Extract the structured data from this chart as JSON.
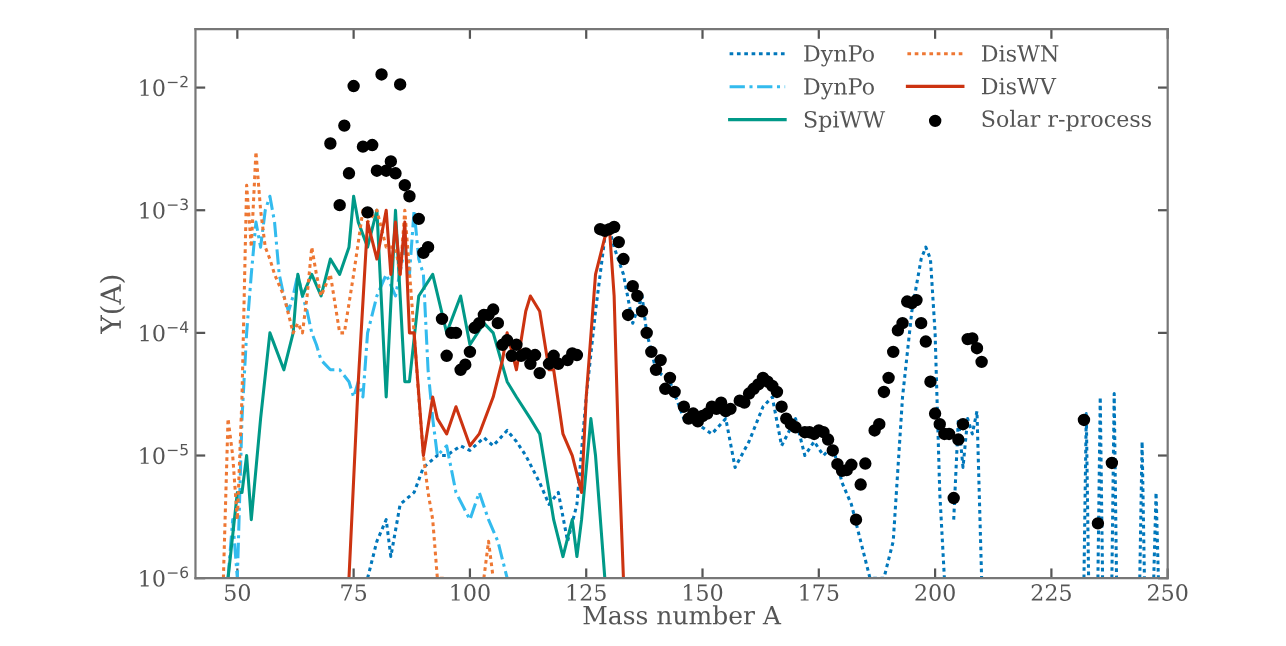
{
  "chart_data": {
    "type": "line",
    "xlabel": "Mass number A",
    "ylabel": "Y(A)",
    "log": "y",
    "xlim": [
      41,
      250
    ],
    "xticks": [
      50,
      75,
      100,
      125,
      150,
      175,
      200,
      225,
      250
    ],
    "ylim": [
      1e-06,
      0.03
    ],
    "yticks": [
      {
        "value": 1e-06,
        "label": "10$^{−6}$"
      },
      {
        "value": 1e-05,
        "label": "10$^{−5}$"
      },
      {
        "value": 0.0001,
        "label": "10$^{−4}$"
      },
      {
        "value": 0.001,
        "label": "10$^{−3}$"
      },
      {
        "value": 0.01,
        "label": "10$^{−2}$"
      }
    ],
    "grid": false,
    "legend": "top right",
    "series": [
      {
        "name": "DynPo",
        "line_style": "dotted",
        "color": "#0077bb",
        "x": [
          78,
          80,
          82,
          83,
          85,
          88,
          90,
          93,
          95,
          98,
          100,
          103,
          105,
          108,
          110,
          112,
          115,
          117,
          119,
          121,
          123,
          125,
          127,
          129,
          130,
          131,
          133,
          135,
          137,
          138,
          140,
          143,
          146,
          149,
          152,
          155,
          157,
          160,
          163,
          165,
          167,
          170,
          172,
          174,
          176,
          178,
          180,
          182,
          184,
          186,
          189,
          191,
          193,
          195,
          197,
          198,
          199,
          200,
          201,
          202,
          203,
          204,
          205,
          206,
          207,
          208,
          209,
          210,
          220,
          232,
          232.5,
          233,
          234,
          235,
          235.5,
          236,
          237,
          238,
          238.5,
          239,
          240,
          244,
          244.5,
          245,
          246,
          247,
          247.5,
          248
        ],
        "values": [
          1e-06,
          2e-06,
          3e-06,
          1.5e-06,
          4e-06,
          5e-06,
          8e-06,
          1e-05,
          1e-05,
          1.2e-05,
          1.1e-05,
          1.4e-05,
          1.2e-05,
          1.6e-05,
          1.3e-05,
          1e-05,
          6e-06,
          4e-06,
          5e-06,
          2e-06,
          4e-06,
          3e-05,
          0.00015,
          0.0006,
          0.0007,
          0.0005,
          0.0003,
          0.00012,
          0.0002,
          0.0001,
          5e-05,
          4e-05,
          2e-05,
          1.8e-05,
          1.5e-05,
          2e-05,
          8e-06,
          1.3e-05,
          2.5e-05,
          3e-05,
          1.2e-05,
          2e-05,
          1e-05,
          1.3e-05,
          1e-05,
          1.2e-05,
          6e-06,
          4e-06,
          2e-06,
          1e-06,
          1e-06,
          2e-06,
          3e-05,
          0.00015,
          0.0004,
          0.0005,
          0.0004,
          0.0001,
          5e-06,
          1e-06,
          null,
          3e-06,
          2e-05,
          8e-06,
          2e-05,
          1.5e-05,
          2.3e-05,
          1e-06,
          null,
          1e-06,
          2.2e-05,
          1e-06,
          null,
          1e-06,
          3e-05,
          1e-06,
          null,
          1e-06,
          3.2e-05,
          1e-06,
          null,
          1e-06,
          1.3e-05,
          1e-06,
          null,
          1e-06,
          5e-06,
          1e-06
        ]
      },
      {
        "name": "DynPo",
        "line_style": "dashed",
        "color": "#33bbee",
        "x": [
          48,
          49,
          50,
          51,
          52,
          53,
          54,
          55,
          56,
          57,
          58,
          59,
          60,
          61,
          62,
          63,
          64,
          65,
          66,
          67,
          68,
          70,
          72,
          74,
          75,
          76,
          77,
          78,
          80,
          82,
          84,
          86,
          87,
          88,
          89,
          90,
          91,
          92,
          93,
          95,
          97,
          100,
          102,
          104,
          106,
          108
        ],
        "values": [
          1e-06,
          3e-06,
          1e-06,
          2e-05,
          0.0001,
          0.0003,
          0.0008,
          0.0005,
          0.001,
          0.0013,
          0.0008,
          0.0003,
          0.0002,
          0.00015,
          0.0002,
          0.0003,
          0.0002,
          0.00015,
          0.0001,
          8e-05,
          6e-05,
          5e-05,
          5e-05,
          4e-05,
          3e-05,
          4e-05,
          3e-05,
          0.0001,
          0.0002,
          0.0003,
          0.0002,
          0.0005,
          0.0003,
          0.001,
          0.0004,
          0.0003,
          5e-05,
          2e-05,
          1e-05,
          1.2e-05,
          5e-06,
          3e-06,
          5e-06,
          3e-06,
          2e-06,
          1e-06
        ]
      },
      {
        "name": "SpiWW",
        "line_style": "solid",
        "color": "#009988",
        "x": [
          48,
          50,
          51,
          52,
          53,
          55,
          57,
          60,
          62,
          63,
          64,
          66,
          68,
          70,
          72,
          74,
          75,
          76,
          78,
          80,
          82,
          84,
          86,
          87,
          89,
          92,
          95,
          98,
          100,
          103,
          105,
          108,
          110,
          113,
          115,
          118,
          120,
          122,
          123,
          124,
          126,
          127,
          129
        ],
        "values": [
          1e-06,
          5e-06,
          5e-06,
          1e-05,
          3e-06,
          2e-05,
          0.0001,
          5e-05,
          0.0001,
          0.0003,
          0.0002,
          0.0003,
          0.0002,
          0.0004,
          0.0003,
          0.0005,
          0.0013,
          0.0008,
          0.0005,
          0.001,
          3e-05,
          0.001,
          4e-05,
          4e-05,
          0.0002,
          0.0003,
          0.0001,
          0.0002,
          8e-05,
          0.00012,
          0.0001,
          4e-05,
          3e-05,
          2e-05,
          1.5e-05,
          3e-06,
          1.5e-06,
          3e-06,
          1.5e-06,
          3e-06,
          2e-05,
          1e-05,
          1e-06
        ]
      },
      {
        "name": "DisWN",
        "line_style": "dotted",
        "color": "#ee7733",
        "x": [
          47,
          48,
          49,
          50,
          51,
          52,
          53,
          54,
          55,
          56,
          57,
          58,
          60,
          62,
          63,
          64,
          65,
          66,
          67,
          68,
          70,
          72,
          73,
          75,
          77,
          78,
          80,
          82,
          84,
          85,
          86,
          88,
          89,
          90,
          91,
          92,
          93,
          95,
          100,
          103,
          104,
          105
        ],
        "values": [
          1e-06,
          2e-05,
          1e-05,
          3e-06,
          3e-05,
          0.0016,
          0.0005,
          0.003,
          0.001,
          0.0005,
          0.0004,
          0.0003,
          0.0002,
          0.0001,
          0.00012,
          0.0001,
          0.0002,
          0.0005,
          0.0003,
          0.0002,
          0.0003,
          0.0001,
          0.0001,
          0.0003,
          0.001,
          0.0008,
          0.001,
          0.0005,
          0.0005,
          0.0003,
          0.001,
          0.0001,
          3e-05,
          1e-05,
          5e-06,
          3e-06,
          1e-06,
          1e-06,
          null,
          1e-06,
          2e-06,
          1e-06
        ]
      },
      {
        "name": "DisWV",
        "line_style": "solid",
        "color": "#cc3311",
        "x": [
          74,
          76,
          78,
          80,
          82,
          83,
          84,
          85,
          86,
          87,
          88,
          90,
          92,
          93,
          95,
          97,
          100,
          102,
          105,
          107,
          108,
          110,
          112,
          113,
          115,
          117,
          118,
          120,
          122,
          124,
          125,
          127,
          129,
          130,
          131,
          132,
          133
        ],
        "values": [
          1e-06,
          4e-05,
          0.0008,
          0.0004,
          0.001,
          0.0003,
          0.0008,
          0.0003,
          0.0008,
          0.0001,
          0.0001,
          1e-05,
          3e-05,
          2e-05,
          1.5e-05,
          2.5e-05,
          1.2e-05,
          1.5e-05,
          3e-05,
          6e-05,
          0.0001,
          5e-05,
          0.00015,
          0.0002,
          0.00015,
          5e-05,
          5e-05,
          1.5e-05,
          1e-05,
          5e-06,
          3e-05,
          0.0003,
          0.0006,
          0.0007,
          0.0002,
          1e-05,
          1e-06
        ]
      },
      {
        "name": "Solar r-process",
        "type": "scatter",
        "marker": "circle",
        "color": "#000000",
        "x": [
          70,
          72,
          73,
          74,
          75,
          77,
          78,
          79,
          80,
          81,
          82,
          83,
          84,
          85,
          86,
          87,
          89,
          90,
          91,
          94,
          95,
          96,
          97,
          98,
          99,
          100,
          101,
          102,
          103,
          104,
          105,
          106,
          107,
          108,
          109,
          110,
          111,
          112,
          113,
          114,
          115,
          117,
          118,
          119,
          121,
          122,
          123,
          128,
          129,
          130,
          131,
          132,
          133,
          134,
          135,
          136,
          137,
          138,
          139,
          140,
          141,
          142,
          143,
          144,
          146,
          147,
          148,
          149,
          150,
          151,
          152,
          153,
          154,
          155,
          156,
          158,
          159,
          160,
          161,
          162,
          163,
          164,
          165,
          166,
          167,
          168,
          169,
          170,
          172,
          173,
          174,
          175,
          176,
          177,
          178,
          179,
          180,
          181,
          182,
          183,
          184,
          185,
          187,
          188,
          189,
          190,
          191,
          192,
          193,
          194,
          195,
          196,
          197,
          198,
          199,
          200,
          201,
          202,
          203,
          204,
          205,
          206,
          207,
          208,
          209,
          210,
          232,
          235,
          238
        ],
        "values": [
          0.0035,
          0.0011,
          0.0049,
          0.002,
          0.0103,
          0.0033,
          0.00096,
          0.0034,
          0.0021,
          0.0128,
          0.0021,
          0.0025,
          0.002,
          0.0106,
          0.0016,
          0.0013,
          0.00085,
          0.00045,
          0.0005,
          0.00013,
          6.5e-05,
          0.0001,
          0.0001,
          5e-05,
          5.5e-05,
          7e-05,
          0.00011,
          0.00012,
          0.00014,
          0.00014,
          0.000155,
          0.00012,
          8e-05,
          8.7e-05,
          6.5e-05,
          8e-05,
          6.5e-05,
          6.8e-05,
          5.6e-05,
          6.6e-05,
          4.7e-05,
          5.6e-05,
          6.5e-05,
          5.6e-05,
          6e-05,
          6.8e-05,
          6.6e-05,
          0.0007,
          0.00068,
          0.0007,
          0.00073,
          0.00055,
          0.0004,
          0.00014,
          0.00024,
          0.0002,
          0.00015,
          0.0001,
          7e-05,
          5e-05,
          6e-05,
          3.5e-05,
          4.3e-05,
          3.3e-05,
          2.5e-05,
          2e-05,
          2.2e-05,
          1.9e-05,
          2.1e-05,
          2.2e-05,
          2.5e-05,
          2.4e-05,
          2.7e-05,
          2.3e-05,
          2.4e-05,
          2.8e-05,
          2.7e-05,
          3.2e-05,
          3.5e-05,
          3.8e-05,
          4.3e-05,
          4e-05,
          3.7e-05,
          3.3e-05,
          2.5e-05,
          2e-05,
          1.8e-05,
          1.7e-05,
          1.55e-05,
          1.55e-05,
          1.5e-05,
          1.6e-05,
          1.55e-05,
          1.35e-05,
          1.1e-05,
          8.5e-06,
          7.5e-06,
          7.6e-06,
          8.4e-06,
          3e-06,
          5.8e-06,
          8.6e-06,
          1.6e-05,
          1.8e-05,
          3.3e-05,
          4.3e-05,
          7e-05,
          0.000105,
          0.00012,
          0.00018,
          0.000175,
          0.000185,
          0.00012,
          8.5e-05,
          4e-05,
          2.2e-05,
          1.8e-05,
          1.5e-05,
          1.5e-05,
          4.5e-06,
          1.35e-05,
          1.8e-05,
          8.9e-05,
          9e-05,
          7.5e-05,
          5.8e-05,
          1.95e-05,
          2.8e-06,
          8.7e-06
        ]
      }
    ]
  }
}
